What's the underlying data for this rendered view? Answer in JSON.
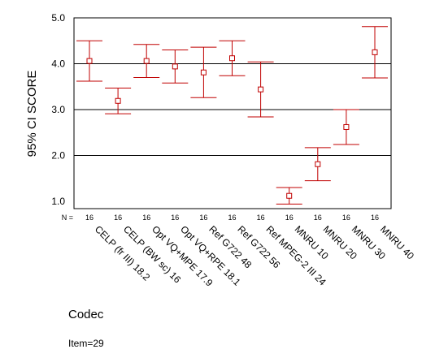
{
  "chart_data": {
    "type": "errorbar",
    "ylabel": "95% CI SCORE",
    "xlabel": "Codec",
    "n_prefix": "N =",
    "ylim": [
      0.9,
      5.0
    ],
    "yticks": [
      "1.0",
      "2.0",
      "3.0",
      "4.0",
      "5.0"
    ],
    "gridlines": [
      2.0,
      3.0,
      4.0
    ],
    "color": "#c00000",
    "categories": [
      "CELP (fr III) 18.2",
      "CELP (BW sc) 16",
      "Opt VQ+MPE 17.9",
      "Opt VQ+RPE 18.1",
      "Ref G722 48",
      "Ref G722 56",
      "Ref MPEG-2 III 24",
      "MNRU 10",
      "MNRU 20",
      "MNRU 30",
      "MNRU 40"
    ],
    "n": [
      "16",
      "16",
      "16",
      "16",
      "16",
      "16",
      "16",
      "16",
      "16",
      "16",
      "16"
    ],
    "mean": [
      4.06,
      3.19,
      4.06,
      3.94,
      3.81,
      4.12,
      3.44,
      1.12,
      1.81,
      2.62,
      4.25
    ],
    "lower": [
      3.62,
      2.91,
      3.7,
      3.58,
      3.26,
      3.74,
      2.84,
      0.94,
      1.45,
      2.24,
      3.69
    ],
    "upper": [
      4.5,
      3.47,
      4.42,
      4.3,
      4.36,
      4.5,
      4.04,
      1.3,
      2.17,
      3.0,
      4.81
    ]
  },
  "footnote": "Item=29"
}
